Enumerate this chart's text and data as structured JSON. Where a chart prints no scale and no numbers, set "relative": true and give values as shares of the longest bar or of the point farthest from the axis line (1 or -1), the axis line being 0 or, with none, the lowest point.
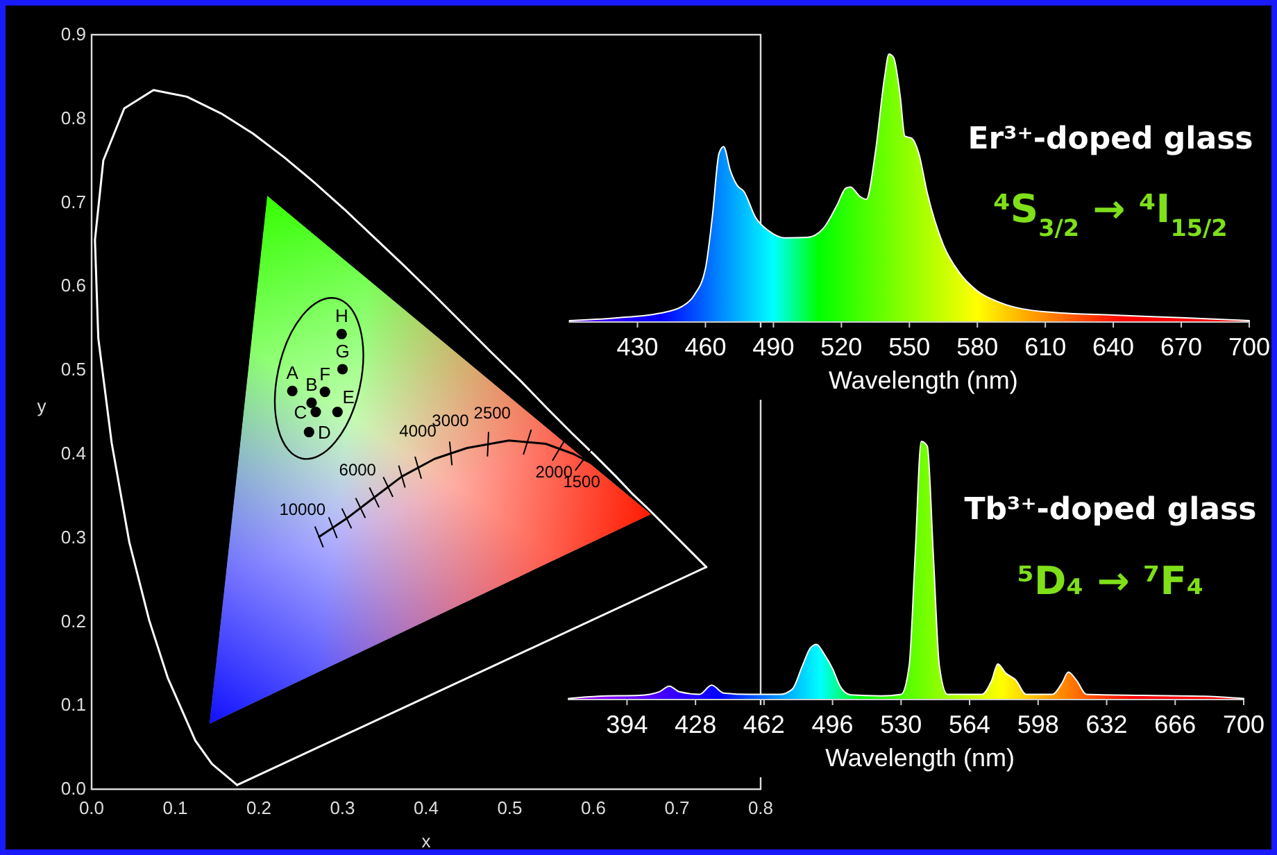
{
  "chart_data": [
    {
      "type": "scatter",
      "xlabel": "x",
      "ylabel": "y",
      "xlim": [
        0,
        0.8
      ],
      "ylim": [
        0,
        0.9
      ],
      "xticks": [
        {
          "value": 0,
          "label": "0.0"
        },
        0.1,
        0.2,
        0.3,
        0.4,
        0.5,
        0.6,
        0.7,
        0.8
      ],
      "yticks": [
        {
          "value": 0,
          "label": "0.0"
        },
        0.1,
        0.2,
        0.3,
        0.4,
        0.5,
        0.6,
        0.7,
        0.8,
        0.9
      ],
      "grid": false,
      "series": [
        {
          "type": "line",
          "color": "#ffffff",
          "x": [
            0.174,
            0.144,
            0.124,
            0.091,
            0.069,
            0.045,
            0.024,
            0.008,
            0.004,
            0.014,
            0.039,
            0.074,
            0.114,
            0.155,
            0.193,
            0.23,
            0.266,
            0.302,
            0.337,
            0.373,
            0.409,
            0.444,
            0.479,
            0.513,
            0.545,
            0.575,
            0.603,
            0.627,
            0.648,
            0.666,
            0.68,
            0.692,
            0.735
          ],
          "values": [
            0.005,
            0.03,
            0.058,
            0.133,
            0.201,
            0.295,
            0.413,
            0.538,
            0.655,
            0.75,
            0.812,
            0.834,
            0.826,
            0.806,
            0.782,
            0.754,
            0.724,
            0.692,
            0.659,
            0.625,
            0.59,
            0.555,
            0.52,
            0.487,
            0.454,
            0.424,
            0.397,
            0.373,
            0.351,
            0.334,
            0.32,
            0.308,
            0.265
          ]
        },
        {
          "type": "line",
          "color": "#ffffff",
          "x": [
            0.174,
            0.735
          ],
          "values": [
            0.005,
            0.265
          ]
        },
        {
          "type": "line",
          "color": "#000000",
          "x": [
            0.272,
            0.305,
            0.338,
            0.371,
            0.41,
            0.449,
            0.499,
            0.543,
            0.576,
            0.601
          ],
          "values": [
            0.301,
            0.323,
            0.348,
            0.373,
            0.394,
            0.407,
            0.416,
            0.412,
            0.4,
            0.387
          ]
        },
        {
          "type": "scatter",
          "color": "#000000",
          "marker": "circle",
          "x": [
            0.24,
            0.263,
            0.268,
            0.26,
            0.294,
            0.279,
            0.3,
            0.299
          ],
          "values": [
            0.475,
            0.461,
            0.45,
            0.426,
            0.45,
            0.474,
            0.501,
            0.543
          ]
        }
      ],
      "annotations": [
        {
          "text": "A",
          "x": 0.24,
          "y": 0.475
        },
        {
          "text": "B",
          "x": 0.263,
          "y": 0.461
        },
        {
          "text": "C",
          "x": 0.268,
          "y": 0.45
        },
        {
          "text": "D",
          "x": 0.26,
          "y": 0.426
        },
        {
          "text": "E",
          "x": 0.294,
          "y": 0.45
        },
        {
          "text": "F",
          "x": 0.279,
          "y": 0.474
        },
        {
          "text": "G",
          "x": 0.3,
          "y": 0.501
        },
        {
          "text": "H",
          "x": 0.299,
          "y": 0.543
        },
        {
          "text": "10000",
          "x": 0.272,
          "y": 0.301
        },
        {
          "text": "6000",
          "x": 0.338,
          "y": 0.348
        },
        {
          "text": "4000",
          "x": 0.41,
          "y": 0.394
        },
        {
          "text": "3000",
          "x": 0.449,
          "y": 0.407
        },
        {
          "text": "2500",
          "x": 0.499,
          "y": 0.416
        },
        {
          "text": "2000",
          "x": 0.543,
          "y": 0.412
        },
        {
          "text": "1500",
          "x": 0.576,
          "y": 0.4
        }
      ]
    },
    {
      "type": "area",
      "relative": true,
      "title": "Er³⁺-doped glass",
      "subtitle": "⁴S$_{3/2}$ → ⁴I$_{15/2}$",
      "xlabel": "Wavelength (nm)",
      "xlim": [
        400,
        700
      ],
      "xticks": [
        430,
        460,
        490,
        520,
        550,
        580,
        610,
        640,
        670,
        700
      ],
      "x": [
        400,
        420,
        440,
        450,
        455,
        460,
        463,
        466,
        468,
        471,
        474,
        477,
        482,
        488,
        495,
        505,
        512,
        518,
        522,
        524,
        528,
        531,
        535,
        539,
        541,
        543,
        546,
        548,
        551,
        554,
        558,
        565,
        572,
        580,
        590,
        610,
        640,
        670,
        700
      ],
      "values": [
        0.005,
        0.015,
        0.033,
        0.06,
        0.1,
        0.2,
        0.39,
        0.63,
        0.655,
        0.565,
        0.51,
        0.487,
        0.392,
        0.34,
        0.314,
        0.316,
        0.349,
        0.435,
        0.5,
        0.504,
        0.47,
        0.458,
        0.634,
        0.91,
        1,
        0.988,
        0.84,
        0.694,
        0.686,
        0.634,
        0.478,
        0.288,
        0.185,
        0.116,
        0.073,
        0.038,
        0.026,
        0.016,
        0.005
      ]
    },
    {
      "type": "area",
      "relative": true,
      "title": "Tb³⁺-doped glass",
      "subtitle": "⁵D₄ → ⁷F₄",
      "xlabel": "Wavelength (nm)",
      "xlim": [
        365,
        700
      ],
      "xticks": [
        394,
        428,
        462,
        496,
        530,
        564,
        598,
        632,
        666,
        700
      ],
      "x": [
        365,
        380,
        400,
        410,
        415,
        420,
        430,
        436,
        442,
        455,
        470,
        476,
        481,
        485,
        488,
        492,
        496,
        500,
        505,
        520,
        530,
        534,
        537,
        540,
        543,
        546,
        549,
        553,
        570,
        575,
        578,
        582,
        587,
        592,
        605,
        610,
        613,
        617,
        622,
        650,
        680,
        700
      ],
      "values": [
        0.004,
        0.013,
        0.016,
        0.03,
        0.052,
        0.03,
        0.02,
        0.056,
        0.025,
        0.02,
        0.02,
        0.04,
        0.13,
        0.2,
        0.214,
        0.174,
        0.12,
        0.048,
        0.018,
        0.014,
        0.02,
        0.13,
        0.56,
        1,
        0.982,
        0.56,
        0.13,
        0.02,
        0.02,
        0.075,
        0.138,
        0.102,
        0.075,
        0.02,
        0.02,
        0.066,
        0.106,
        0.075,
        0.02,
        0.016,
        0.013,
        0.004
      ]
    }
  ]
}
